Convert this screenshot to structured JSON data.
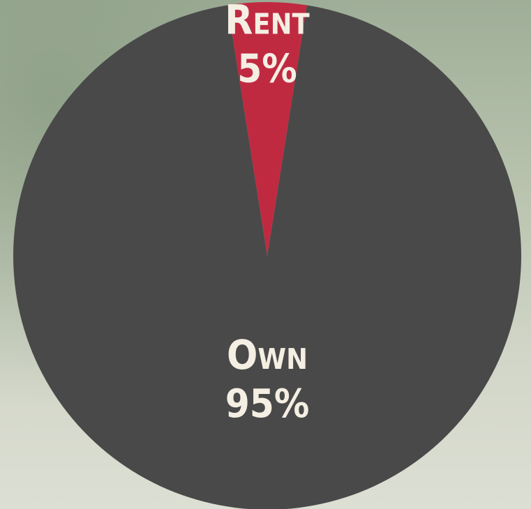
{
  "chart_data": {
    "type": "pie",
    "categories": [
      "Rent",
      "Own"
    ],
    "values": [
      5,
      95
    ],
    "value_labels": [
      "5%",
      "95%"
    ],
    "colors": [
      "#c02a41",
      "#494949"
    ]
  }
}
